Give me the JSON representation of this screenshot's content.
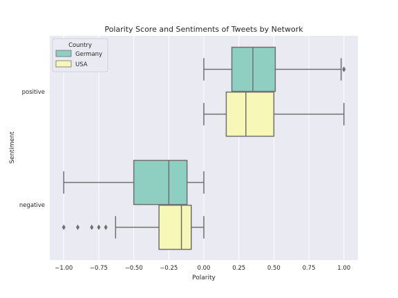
{
  "chart_data": {
    "type": "boxplot",
    "orientation": "horizontal",
    "title": "Polarity Score and Sentiments of Tweets by Network",
    "xlabel": "Polarity",
    "ylabel": "Sentiment",
    "xlim": [
      -1.1,
      1.1
    ],
    "xticks": [
      -1.0,
      -0.75,
      -0.5,
      -0.25,
      0.0,
      0.25,
      0.5,
      0.75,
      1.0
    ],
    "xtick_labels": [
      "−1.00",
      "−0.75",
      "−0.50",
      "−0.25",
      "0.00",
      "0.25",
      "0.50",
      "0.75",
      "1.00"
    ],
    "categories": [
      "positive",
      "negative"
    ],
    "grid": true,
    "legend": {
      "title": "Country",
      "placement": "top-left"
    },
    "series": [
      {
        "name": "Germany",
        "color": "#8ecfc1",
        "boxes": [
          {
            "category": "positive",
            "whislo": 0.0,
            "q1": 0.2,
            "med": 0.35,
            "q3": 0.51,
            "whishi": 0.98,
            "fliers": [
              1.0,
              1.0
            ]
          },
          {
            "category": "negative",
            "whislo": -1.0,
            "q1": -0.5,
            "med": -0.25,
            "q3": -0.12,
            "whishi": 0.0,
            "fliers": []
          }
        ]
      },
      {
        "name": "USA",
        "color": "#f7f7b8",
        "boxes": [
          {
            "category": "positive",
            "whislo": 0.0,
            "q1": 0.16,
            "med": 0.3,
            "q3": 0.5,
            "whishi": 1.0,
            "fliers": []
          },
          {
            "category": "negative",
            "whislo": -0.63,
            "q1": -0.32,
            "med": -0.16,
            "q3": -0.09,
            "whishi": 0.0,
            "fliers": [
              -1.0,
              -0.9,
              -0.8,
              -0.75,
              -0.7
            ]
          }
        ]
      }
    ]
  }
}
